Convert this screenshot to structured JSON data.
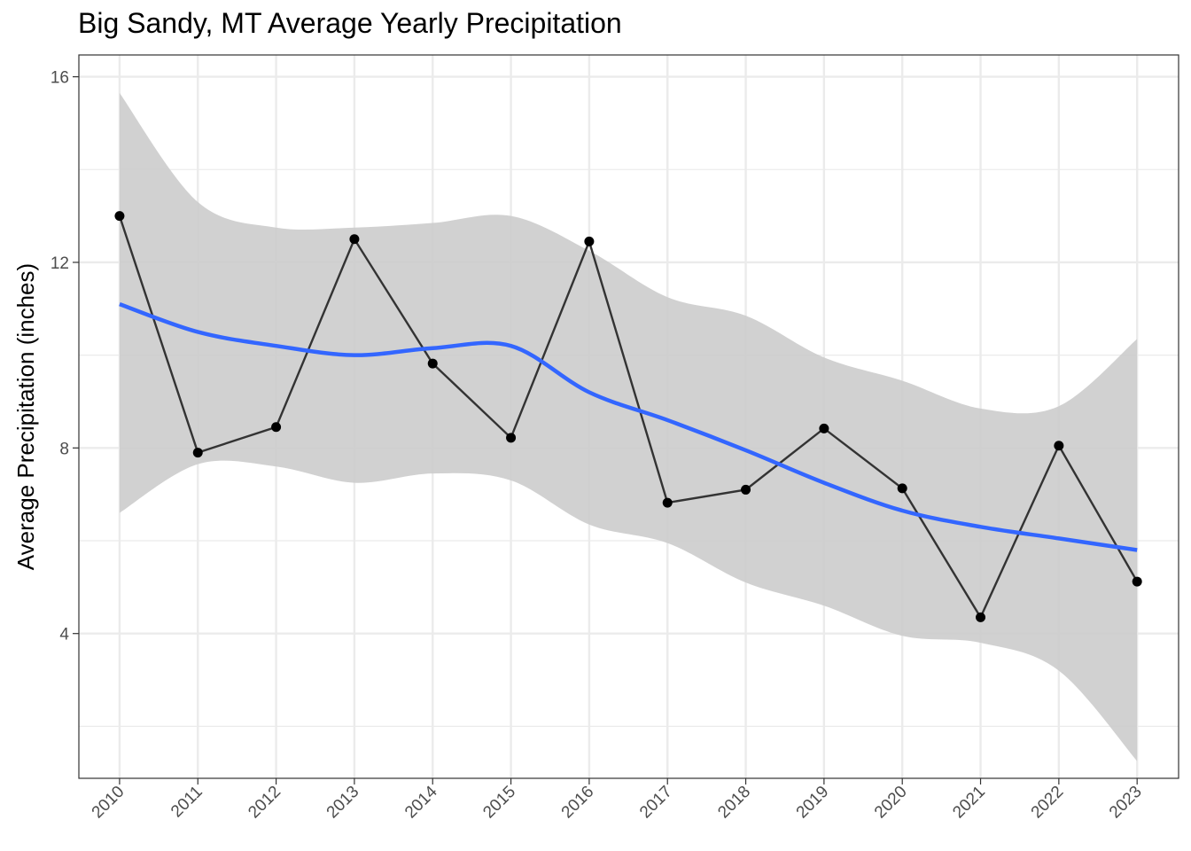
{
  "chart_data": {
    "type": "line",
    "title": "Big Sandy, MT Average Yearly Precipitation",
    "xlabel": "",
    "ylabel": "Average Precipitation (inches)",
    "x": [
      2010,
      2011,
      2012,
      2013,
      2014,
      2015,
      2016,
      2017,
      2018,
      2019,
      2020,
      2021,
      2022,
      2023
    ],
    "x_tick_labels": [
      "2010",
      "2011",
      "2012",
      "2013",
      "2014",
      "2015",
      "2016",
      "2017",
      "2018",
      "2019",
      "2020",
      "2021",
      "2022",
      "2023"
    ],
    "y_ticks": [
      4,
      8,
      12,
      16
    ],
    "y_tick_labels": [
      "4",
      "8",
      "12",
      "16"
    ],
    "xlim": [
      2009.48,
      2023.53
    ],
    "ylim": [
      0.88,
      16.47
    ],
    "grid": true,
    "series": [
      {
        "role": "observed",
        "values": [
          13.0,
          7.9,
          8.45,
          12.5,
          9.82,
          8.22,
          12.45,
          6.82,
          7.1,
          8.42,
          7.13,
          4.35,
          8.05,
          5.12
        ],
        "color": "#333333"
      },
      {
        "role": "smooth",
        "values": [
          11.1,
          10.5,
          10.2,
          10.0,
          10.15,
          10.2,
          9.2,
          8.6,
          7.95,
          7.25,
          6.65,
          6.3,
          6.05,
          5.8
        ],
        "ci_lower": [
          6.6,
          7.65,
          7.6,
          7.25,
          7.45,
          7.3,
          6.35,
          5.95,
          5.1,
          4.6,
          3.95,
          3.8,
          3.2,
          1.25
        ],
        "ci_upper": [
          15.65,
          13.3,
          12.75,
          12.75,
          12.85,
          13.0,
          12.25,
          11.25,
          10.85,
          9.95,
          9.45,
          8.85,
          8.9,
          10.35
        ],
        "color": "#3366ff",
        "ci_color": "#cccccc"
      }
    ]
  }
}
